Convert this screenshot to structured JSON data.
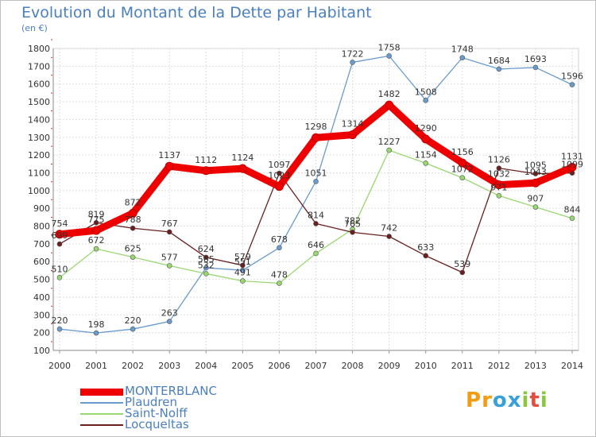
{
  "header": {
    "title": "Evolution du Montant de la Dette par Habitant",
    "unit": "(en €)"
  },
  "logo": {
    "text": "Proxiti",
    "letters": [
      {
        "ch": "P",
        "color": "#f39c12"
      },
      {
        "ch": "r",
        "color": "#f39c12"
      },
      {
        "ch": "o",
        "color": "#3aa0d8"
      },
      {
        "ch": "x",
        "color": "#3aa0d8"
      },
      {
        "ch": "i",
        "color": "#8cc63f"
      },
      {
        "ch": "t",
        "color": "#e74c3c"
      },
      {
        "ch": "i",
        "color": "#8cc63f"
      }
    ]
  },
  "chart_data": {
    "type": "line",
    "title": "Evolution du Montant de la Dette par Habitant",
    "ylabel": "(en €)",
    "xlabel": "",
    "x": [
      "2000",
      "2001",
      "2002",
      "2003",
      "2004",
      "2005",
      "2006",
      "2007",
      "2008",
      "2009",
      "2010",
      "2011",
      "2012",
      "2013",
      "2014"
    ],
    "ylim": [
      100,
      1800
    ],
    "yticks": [
      100,
      200,
      300,
      400,
      500,
      600,
      700,
      800,
      900,
      1000,
      1100,
      1200,
      1300,
      1400,
      1500,
      1600,
      1700,
      1800
    ],
    "grid": true,
    "legend_position": "bottom-left",
    "series": [
      {
        "name": "MONTERBLANC",
        "color": "#ee0000",
        "width": 9,
        "marker": 5,
        "values": [
          754,
          775,
          872,
          1137,
          1112,
          1124,
          1023,
          1298,
          1314,
          1482,
          1290,
          1156,
          1032,
          1043,
          1131
        ]
      },
      {
        "name": "Plaudren",
        "color": "#6a9bcf",
        "width": 1.3,
        "marker": 3,
        "values": [
          220,
          198,
          220,
          263,
          565,
          551,
          678,
          1051,
          1722,
          1758,
          1508,
          1748,
          1684,
          1693,
          1596
        ]
      },
      {
        "name": "Saint-Nolff",
        "color": "#99d870",
        "width": 1.3,
        "marker": 3,
        "values": [
          510,
          672,
          625,
          577,
          532,
          491,
          478,
          646,
          782,
          1227,
          1154,
          1072,
          971,
          907,
          844
        ]
      },
      {
        "name": "Locqueltas",
        "color": "#6b1f1f",
        "width": 1.3,
        "marker": 3,
        "values": [
          699,
          819,
          788,
          767,
          624,
          579,
          1097,
          814,
          765,
          742,
          633,
          539,
          1126,
          1095,
          1099
        ]
      }
    ],
    "data_labels": {
      "MONTERBLANC": [
        "754",
        "775",
        "872",
        "1137",
        "1112",
        "1124",
        "1023",
        "1298",
        "1314",
        "1482",
        "1290",
        "1156",
        "1032",
        "1043",
        "1131"
      ],
      "Plaudren": [
        "220",
        "198",
        "220",
        "263",
        "565",
        "551",
        "678",
        "1051",
        "1722",
        "1758",
        "1508",
        "1748",
        "1684",
        "1693",
        "1596"
      ],
      "Saint-Nolff": [
        "510",
        "672",
        "625",
        "577",
        "532",
        "491",
        "478",
        "646",
        "782",
        "1227",
        "1154",
        "1072",
        "971",
        "907",
        "844"
      ],
      "Locqueltas": [
        "699",
        "819",
        "788",
        "767",
        "624",
        "579",
        "1097",
        "814",
        "765",
        "742",
        "633",
        "539",
        "1126",
        "1095",
        "1099"
      ]
    }
  }
}
